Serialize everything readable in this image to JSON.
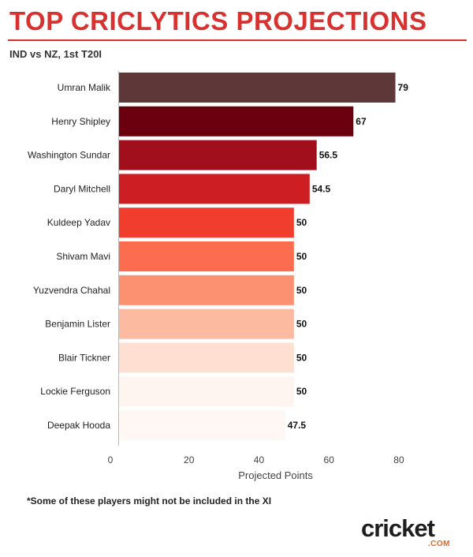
{
  "header": {
    "title": "TOP CRICLYTICS PROJECTIONS",
    "subtitle": "IND vs NZ, 1st T20I"
  },
  "footnote": "*Some of these players might not be included in the XI",
  "logo": {
    "word": "cricket",
    "suffix": ".COM"
  },
  "chart_data": {
    "type": "bar",
    "orientation": "horizontal",
    "categories": [
      "Umran Malik",
      "Henry Shipley",
      "Washington Sundar",
      "Daryl Mitchell",
      "Kuldeep Yadav",
      "Shivam Mavi",
      "Yuzvendra Chahal",
      "Benjamin Lister",
      "Blair Tickner",
      "Lockie Ferguson",
      "Deepak Hooda"
    ],
    "values": [
      79,
      67,
      56.5,
      54.5,
      50,
      50,
      50,
      50,
      50,
      50,
      47.5
    ],
    "value_labels": [
      "79",
      "67",
      "56.5",
      "54.5",
      "50",
      "50",
      "50",
      "50",
      "50",
      "50",
      "47.5"
    ],
    "bar_colors": [
      "#5e3838",
      "#6a000d",
      "#a10f1c",
      "#cd1f23",
      "#f13d2e",
      "#fc6c4e",
      "#fc9171",
      "#fcbba1",
      "#fee0d2",
      "#fff5f0",
      "#fff7f3"
    ],
    "xlabel": "Projected Points",
    "xlim": [
      0,
      85
    ],
    "xticks": [
      0,
      20,
      40,
      60,
      80
    ],
    "grid": false,
    "legend": "none"
  }
}
